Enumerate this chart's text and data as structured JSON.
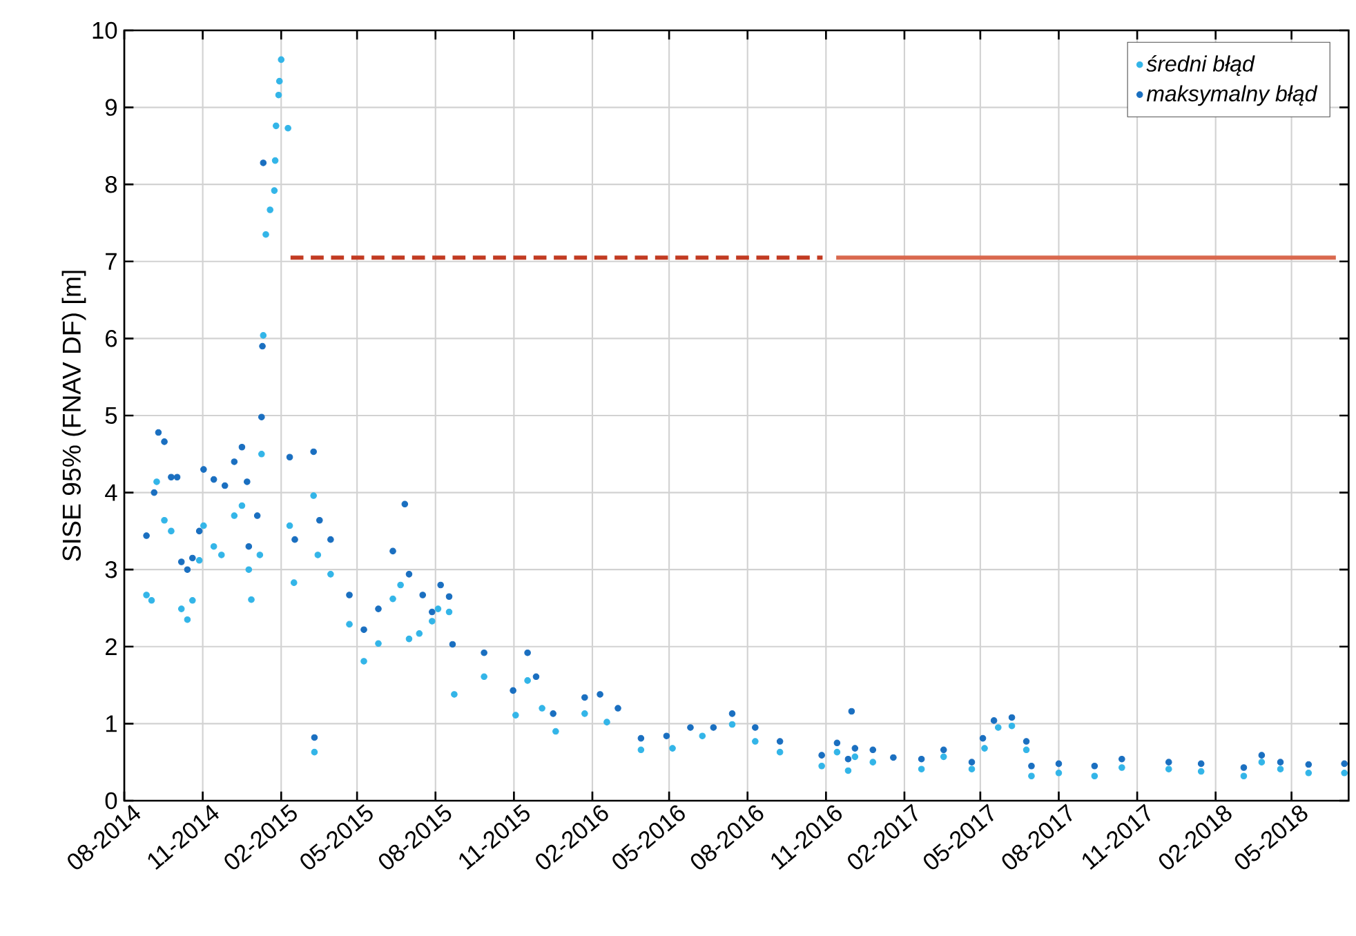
{
  "chart_data": {
    "type": "scatter",
    "ylabel": "SISE 95% (FNAV DF) [m]",
    "xlim": [
      "2014-08-01",
      "2018-07-07"
    ],
    "ylim": [
      0,
      10
    ],
    "yticks": [
      0,
      1,
      2,
      3,
      4,
      5,
      6,
      7,
      8,
      9,
      10
    ],
    "xticks": [
      {
        "value": "2014-08",
        "label": "08-2014"
      },
      {
        "value": "2014-11",
        "label": "11-2014"
      },
      {
        "value": "2015-02",
        "label": "02-2015"
      },
      {
        "value": "2015-05",
        "label": "05-2015"
      },
      {
        "value": "2015-08",
        "label": "08-2015"
      },
      {
        "value": "2015-11",
        "label": "11-2015"
      },
      {
        "value": "2016-02",
        "label": "02-2016"
      },
      {
        "value": "2016-05",
        "label": "05-2016"
      },
      {
        "value": "2016-08",
        "label": "08-2016"
      },
      {
        "value": "2016-11",
        "label": "11-2016"
      },
      {
        "value": "2017-02",
        "label": "02-2017"
      },
      {
        "value": "2017-05",
        "label": "05-2017"
      },
      {
        "value": "2017-08",
        "label": "08-2017"
      },
      {
        "value": "2017-11",
        "label": "11-2017"
      },
      {
        "value": "2018-02",
        "label": "02-2018"
      },
      {
        "value": "2018-05",
        "label": "05-2018"
      }
    ],
    "grid": true,
    "legend": "top right",
    "series": [
      {
        "name": "średni błąd",
        "marker": "circle",
        "color": "#33b5e8",
        "x": [
          "2014-08-27",
          "2014-09-02",
          "2014-09-08",
          "2014-09-17",
          "2014-09-25",
          "2014-10-07",
          "2014-10-14",
          "2014-10-20",
          "2014-10-28",
          "2014-11-02",
          "2014-11-14",
          "2014-11-23",
          "2014-12-08",
          "2014-12-17",
          "2014-12-25",
          "2014-12-28",
          "2015-01-07",
          "2015-01-09",
          "2015-01-11",
          "2015-01-14",
          "2015-01-19",
          "2015-01-24",
          "2015-01-25",
          "2015-01-26",
          "2015-01-29",
          "2015-01-30",
          "2015-02-01",
          "2015-02-09",
          "2015-02-11",
          "2015-02-16",
          "2015-03-11",
          "2015-03-12",
          "2015-03-16",
          "2015-03-31",
          "2015-04-22",
          "2015-05-09",
          "2015-05-26",
          "2015-06-12",
          "2015-06-21",
          "2015-07-01",
          "2015-07-13",
          "2015-07-28",
          "2015-08-04",
          "2015-08-17",
          "2015-08-23",
          "2015-09-27",
          "2015-11-03",
          "2015-11-17",
          "2015-12-04",
          "2015-12-20",
          "2016-01-23",
          "2016-02-18",
          "2016-03-29",
          "2016-05-05",
          "2016-06-09",
          "2016-07-14",
          "2016-08-10",
          "2016-09-08",
          "2016-10-27",
          "2016-11-14",
          "2016-11-27",
          "2016-12-05",
          "2016-12-26",
          "2017-02-21",
          "2017-03-19",
          "2017-04-21",
          "2017-05-06",
          "2017-05-22",
          "2017-06-07",
          "2017-06-24",
          "2017-06-30",
          "2017-08-01",
          "2017-09-12",
          "2017-10-14",
          "2017-12-08",
          "2018-01-15",
          "2018-03-06",
          "2018-03-27",
          "2018-04-18",
          "2018-05-21",
          "2018-07-02"
        ],
        "values": [
          2.67,
          2.6,
          4.14,
          3.64,
          3.5,
          2.49,
          2.35,
          2.6,
          3.12,
          3.57,
          3.3,
          3.19,
          3.7,
          3.83,
          3.0,
          2.61,
          3.19,
          4.5,
          6.04,
          7.35,
          7.67,
          7.92,
          8.31,
          8.76,
          9.16,
          9.34,
          9.62,
          8.73,
          3.57,
          2.83,
          3.96,
          0.63,
          3.19,
          2.94,
          2.29,
          1.81,
          2.04,
          2.62,
          2.8,
          2.1,
          2.17,
          2.33,
          2.49,
          2.45,
          1.38,
          1.61,
          1.11,
          1.56,
          1.2,
          0.9,
          1.13,
          1.02,
          0.66,
          0.68,
          0.84,
          0.99,
          0.77,
          0.63,
          0.45,
          0.63,
          0.39,
          0.57,
          0.5,
          0.41,
          0.57,
          0.41,
          0.68,
          0.95,
          0.97,
          0.66,
          0.32,
          0.36,
          0.32,
          0.43,
          0.41,
          0.38,
          0.32,
          0.5,
          0.41,
          0.36,
          0.36
        ]
      },
      {
        "name": "maksymalny błąd",
        "marker": "circle",
        "color": "#1a6fc0",
        "x": [
          "2014-08-27",
          "2014-09-05",
          "2014-09-10",
          "2014-09-17",
          "2014-09-25",
          "2014-10-02",
          "2014-10-07",
          "2014-10-14",
          "2014-10-20",
          "2014-10-28",
          "2014-11-02",
          "2014-11-14",
          "2014-11-27",
          "2014-12-08",
          "2014-12-17",
          "2014-12-23",
          "2014-12-25",
          "2015-01-04",
          "2015-01-09",
          "2015-01-10",
          "2015-01-11",
          "2015-02-11",
          "2015-02-17",
          "2015-03-11",
          "2015-03-12",
          "2015-03-18",
          "2015-03-31",
          "2015-04-22",
          "2015-05-09",
          "2015-05-26",
          "2015-06-12",
          "2015-06-26",
          "2015-07-01",
          "2015-07-17",
          "2015-07-28",
          "2015-08-07",
          "2015-08-17",
          "2015-08-21",
          "2015-09-27",
          "2015-10-31",
          "2015-11-17",
          "2015-11-27",
          "2015-12-17",
          "2016-01-23",
          "2016-02-10",
          "2016-03-02",
          "2016-03-29",
          "2016-04-28",
          "2016-05-26",
          "2016-06-22",
          "2016-07-14",
          "2016-08-10",
          "2016-09-08",
          "2016-10-27",
          "2016-11-14",
          "2016-11-27",
          "2016-12-01",
          "2016-12-05",
          "2016-12-26",
          "2017-01-19",
          "2017-02-21",
          "2017-03-19",
          "2017-04-21",
          "2017-05-04",
          "2017-05-17",
          "2017-06-07",
          "2017-06-24",
          "2017-06-30",
          "2017-08-01",
          "2017-09-12",
          "2017-10-14",
          "2017-12-08",
          "2018-01-15",
          "2018-03-06",
          "2018-03-27",
          "2018-04-18",
          "2018-05-21",
          "2018-07-02"
        ],
        "values": [
          3.44,
          4.0,
          4.78,
          4.66,
          4.2,
          4.2,
          3.1,
          3.0,
          3.15,
          3.5,
          4.3,
          4.17,
          4.09,
          4.4,
          4.59,
          4.14,
          3.3,
          3.7,
          4.98,
          5.9,
          8.28,
          4.46,
          3.39,
          4.53,
          0.82,
          3.64,
          3.39,
          2.67,
          2.22,
          2.49,
          3.24,
          3.85,
          2.94,
          2.67,
          2.45,
          2.8,
          2.65,
          2.03,
          1.92,
          1.43,
          1.92,
          1.61,
          1.13,
          1.34,
          1.38,
          1.2,
          0.81,
          0.84,
          0.95,
          0.95,
          1.13,
          0.95,
          0.77,
          0.59,
          0.75,
          0.54,
          1.16,
          0.68,
          0.66,
          0.56,
          0.54,
          0.66,
          0.5,
          0.81,
          1.04,
          1.08,
          0.77,
          0.45,
          0.48,
          0.45,
          0.54,
          0.5,
          0.48,
          0.43,
          0.59,
          0.5,
          0.47,
          0.48
        ]
      },
      {
        "type": "line",
        "marker": "none",
        "line_style": "dashed",
        "color": "#c23b22",
        "x": [
          "2015-02-12",
          "2016-10-28"
        ],
        "values": [
          7.05,
          7.05
        ]
      },
      {
        "type": "line",
        "marker": "none",
        "line_style": "solid",
        "color": "#d9694f",
        "x": [
          "2016-11-13",
          "2018-06-22"
        ],
        "values": [
          7.05,
          7.05
        ]
      }
    ]
  }
}
